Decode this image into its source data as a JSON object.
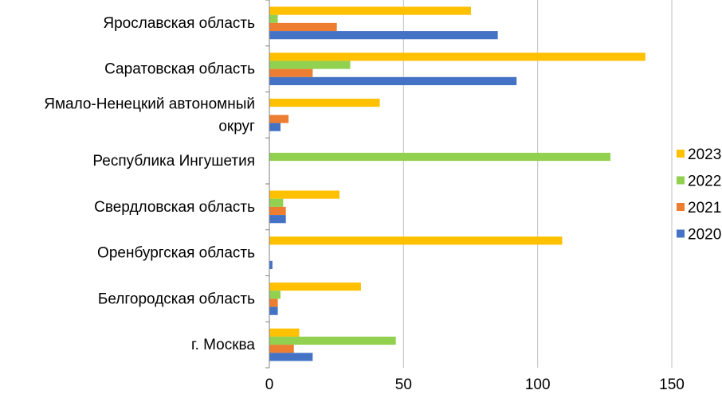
{
  "chart_data": {
    "type": "bar",
    "orientation": "horizontal",
    "categories": [
      "Ярославская область",
      "Саратовская область",
      [
        "Ямало-Ненецкий автономный",
        "округ"
      ],
      "Республика Ингушетия",
      "Свердловская область",
      "Оренбургская область",
      "Белгородская область",
      "г. Москва"
    ],
    "series": [
      {
        "name": "2023",
        "color": "#FFC000",
        "values": [
          75,
          140,
          41,
          0,
          26,
          109,
          34,
          11
        ]
      },
      {
        "name": "2022",
        "color": "#92D050",
        "values": [
          3,
          30,
          0,
          127,
          5,
          0,
          4,
          47
        ]
      },
      {
        "name": "2021",
        "color": "#ED7D31",
        "values": [
          25,
          16,
          7,
          0,
          6,
          0,
          3,
          9
        ]
      },
      {
        "name": "2020",
        "color": "#4472C4",
        "values": [
          85,
          92,
          4,
          0,
          6,
          1,
          3,
          16
        ]
      }
    ],
    "xlim": [
      0,
      150
    ],
    "xticks": [
      0,
      50,
      100,
      150
    ],
    "grid": true,
    "legend_position": "right",
    "legend_order": [
      "2023",
      "2022",
      "2021",
      "2020"
    ],
    "title": "",
    "xlabel": "",
    "ylabel": ""
  }
}
